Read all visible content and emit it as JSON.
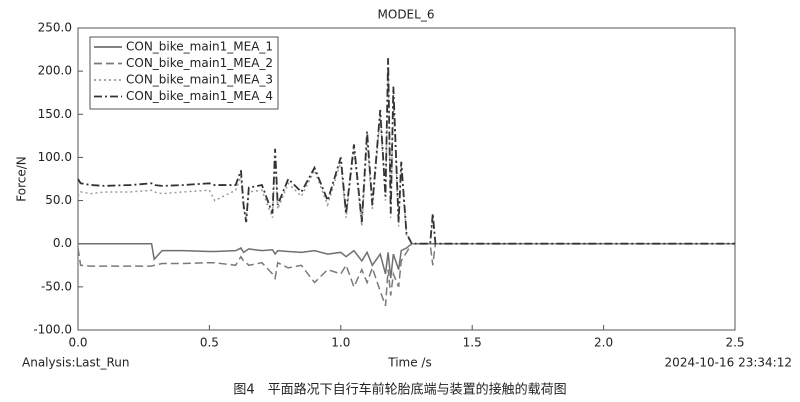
{
  "chart_data": {
    "type": "line",
    "title": "MODEL_6",
    "y_label": "Force/N",
    "x_label": "Time /s",
    "analysis": "Analysis:Last_Run",
    "timestamp": "2024-10-16 23:34:12",
    "caption": "图4　平面路况下自行车前轮胎底端与装置的接触的载荷图",
    "legend": "upper-left",
    "xlim": [
      0,
      2.5
    ],
    "ylim": [
      -100,
      250
    ],
    "xticks": [
      {
        "value": 0,
        "label": "0.0"
      },
      0.5,
      {
        "value": 1,
        "label": "1.0"
      },
      1.5,
      {
        "value": 2,
        "label": "2.0"
      },
      2.5
    ],
    "yticks": [
      {
        "value": -100,
        "label": "-100.0"
      },
      {
        "value": -50,
        "label": "-50.0"
      },
      {
        "value": 0,
        "label": "0.0"
      },
      {
        "value": 50,
        "label": "50.0"
      },
      {
        "value": 100,
        "label": "100.0"
      },
      {
        "value": 150,
        "label": "150.0"
      },
      {
        "value": 200,
        "label": "200.0"
      },
      {
        "value": 250,
        "label": "250.0"
      }
    ],
    "x": [
      0,
      0.01,
      0.05,
      0.1,
      0.2,
      0.28,
      0.29,
      0.32,
      0.4,
      0.5,
      0.52,
      0.6,
      0.62,
      0.63,
      0.64,
      0.65,
      0.7,
      0.74,
      0.75,
      0.76,
      0.8,
      0.85,
      0.9,
      0.95,
      1.0,
      1.02,
      1.05,
      1.08,
      1.1,
      1.12,
      1.15,
      1.17,
      1.18,
      1.19,
      1.2,
      1.22,
      1.23,
      1.25,
      1.27,
      1.3,
      1.34,
      1.35,
      1.36,
      1.4,
      1.5,
      2.0,
      2.5
    ],
    "series": [
      {
        "name": "CON_bike_main1_MEA_1",
        "color": "#6f6f6f",
        "dash": "none",
        "values": [
          0,
          0,
          0,
          0,
          0,
          0,
          -18,
          -8,
          -8,
          -9,
          -9,
          -8,
          -5,
          -10,
          -8,
          -6,
          -8,
          -7,
          -12,
          -8,
          -9,
          -10,
          -8,
          -12,
          -10,
          -15,
          -8,
          -20,
          -10,
          -25,
          -12,
          -35,
          -10,
          -40,
          -12,
          -30,
          -8,
          -5,
          0,
          0,
          0,
          0,
          0,
          0,
          0,
          0,
          0
        ]
      },
      {
        "name": "CON_bike_main1_MEA_2",
        "color": "#7a7a7a",
        "dash": "8,4",
        "values": [
          -5,
          -25,
          -26,
          -26,
          -26,
          -26,
          -25,
          -23,
          -23,
          -22,
          -22,
          -25,
          -15,
          -20,
          -22,
          -25,
          -22,
          -35,
          -40,
          -22,
          -28,
          -25,
          -45,
          -30,
          -35,
          -25,
          -50,
          -30,
          -45,
          -28,
          -55,
          -72,
          -30,
          -60,
          -35,
          -50,
          -20,
          -10,
          0,
          0,
          0,
          -25,
          0,
          0,
          0,
          0,
          0
        ]
      },
      {
        "name": "CON_bike_main1_MEA_3",
        "color": "#9a9a9a",
        "dash": "2,3",
        "values": [
          55,
          60,
          58,
          60,
          60,
          62,
          60,
          58,
          60,
          62,
          50,
          62,
          78,
          40,
          30,
          60,
          62,
          30,
          100,
          40,
          70,
          55,
          85,
          45,
          95,
          30,
          110,
          20,
          120,
          40,
          150,
          50,
          205,
          30,
          170,
          20,
          90,
          10,
          0,
          0,
          0,
          30,
          0,
          0,
          0,
          0,
          0
        ]
      },
      {
        "name": "CON_bike_main1_MEA_4",
        "color": "#333333",
        "dash": "8,3,2,3",
        "values": [
          75,
          70,
          68,
          67,
          68,
          70,
          68,
          67,
          68,
          70,
          68,
          68,
          85,
          45,
          25,
          65,
          68,
          35,
          110,
          45,
          75,
          60,
          88,
          50,
          100,
          35,
          115,
          25,
          130,
          45,
          155,
          55,
          215,
          35,
          182,
          25,
          95,
          12,
          0,
          0,
          0,
          35,
          0,
          0,
          0,
          0,
          0
        ]
      }
    ]
  }
}
